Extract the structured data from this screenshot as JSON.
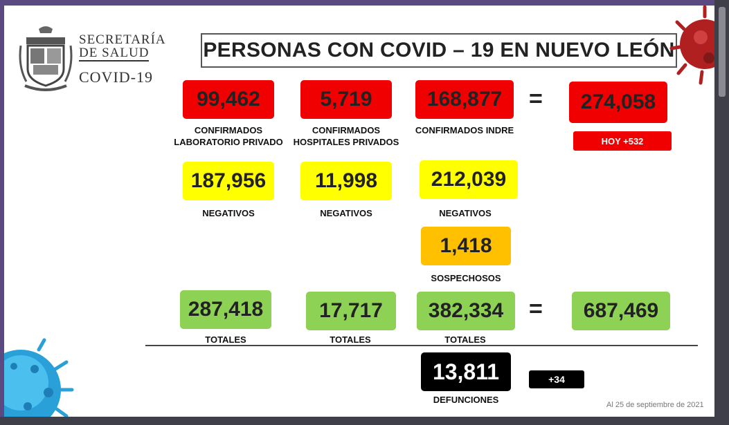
{
  "header": {
    "org_line1": "SECRETARÍA",
    "org_line2": "DE SALUD",
    "org_line3": "COVID-19",
    "title": "PERSONAS CON COVID – 19 EN NUEVO LEÓN"
  },
  "colors": {
    "confirmed": "#f00000",
    "negative": "#ffff00",
    "suspected": "#ffc000",
    "total": "#8ed255",
    "deaths": "#000000"
  },
  "confirmed": {
    "lab_private": "99,462",
    "lab_private_label": "CONFIRMADOS\nLABORATORIO PRIVADO",
    "hosp_private": "5,719",
    "hosp_private_label": "CONFIRMADOS\nHOSPITALES PRIVADOS",
    "indre": "168,877",
    "indre_label": "CONFIRMADOS INDRE",
    "equals": "=",
    "total": "274,058",
    "today": "HOY +532"
  },
  "negatives": {
    "lab_private": "187,956",
    "hosp_private": "11,998",
    "indre": "212,039",
    "label": "NEGATIVOS"
  },
  "suspected": {
    "value": "1,418",
    "label": "SOSPECHOSOS"
  },
  "totals": {
    "lab_private": "287,418",
    "hosp_private": "17,717",
    "indre": "382,334",
    "equals": "=",
    "grand_total": "687,469",
    "label": "TOTALES"
  },
  "deaths": {
    "value": "13,811",
    "label": "DEFUNCIONES",
    "today": "+34"
  },
  "footer": {
    "date": "Al 25 de septiembre de 2021"
  },
  "icons": [
    "nuevo-leon-coat-of-arms-icon",
    "coronavirus-icon"
  ]
}
